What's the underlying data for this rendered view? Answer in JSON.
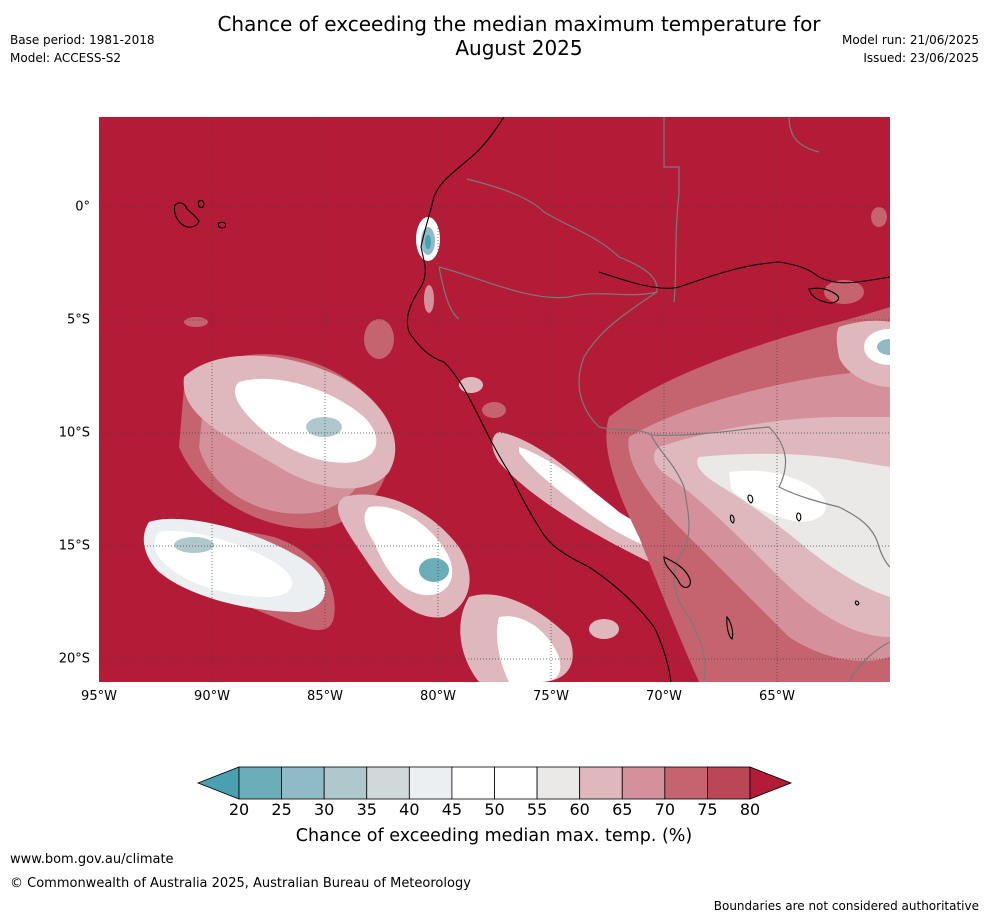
{
  "header": {
    "base_period": "Base period: 1981-2018",
    "model": "Model: ACCESS-S2",
    "title_line1": "Chance of exceeding the median maximum temperature for",
    "title_line2": "August 2025",
    "model_run": "Model run: 21/06/2025",
    "issued": "Issued: 23/06/2025"
  },
  "map": {
    "lat_labels": [
      "0°",
      "5°S",
      "10°S",
      "15°S",
      "20°S"
    ],
    "lon_labels": [
      "95°W",
      "90°W",
      "85°W",
      "80°W",
      "75°W",
      "70°W",
      "65°W"
    ],
    "background_color": "#b31b37"
  },
  "colorbar": {
    "ticks": [
      "20",
      "25",
      "30",
      "35",
      "40",
      "45",
      "50",
      "55",
      "60",
      "65",
      "70",
      "75",
      "80"
    ],
    "colors": [
      "#49a0b0",
      "#6badb9",
      "#8fbac6",
      "#aec8cd",
      "#d1d8da",
      "#ebeff1",
      "#ffffff",
      "#ffffff",
      "#ebe9e8",
      "#dfb8bd",
      "#d4909b",
      "#c5636f",
      "#bb4656",
      "#b31b37"
    ],
    "label": "Chance of exceeding median max. temp. (%)"
  },
  "footer": {
    "website": "www.bom.gov.au/climate",
    "copyright": "© Commonwealth of Australia 2025, Australian Bureau of Meteorology",
    "disclaimer": "Boundaries are not considered authoritative"
  }
}
